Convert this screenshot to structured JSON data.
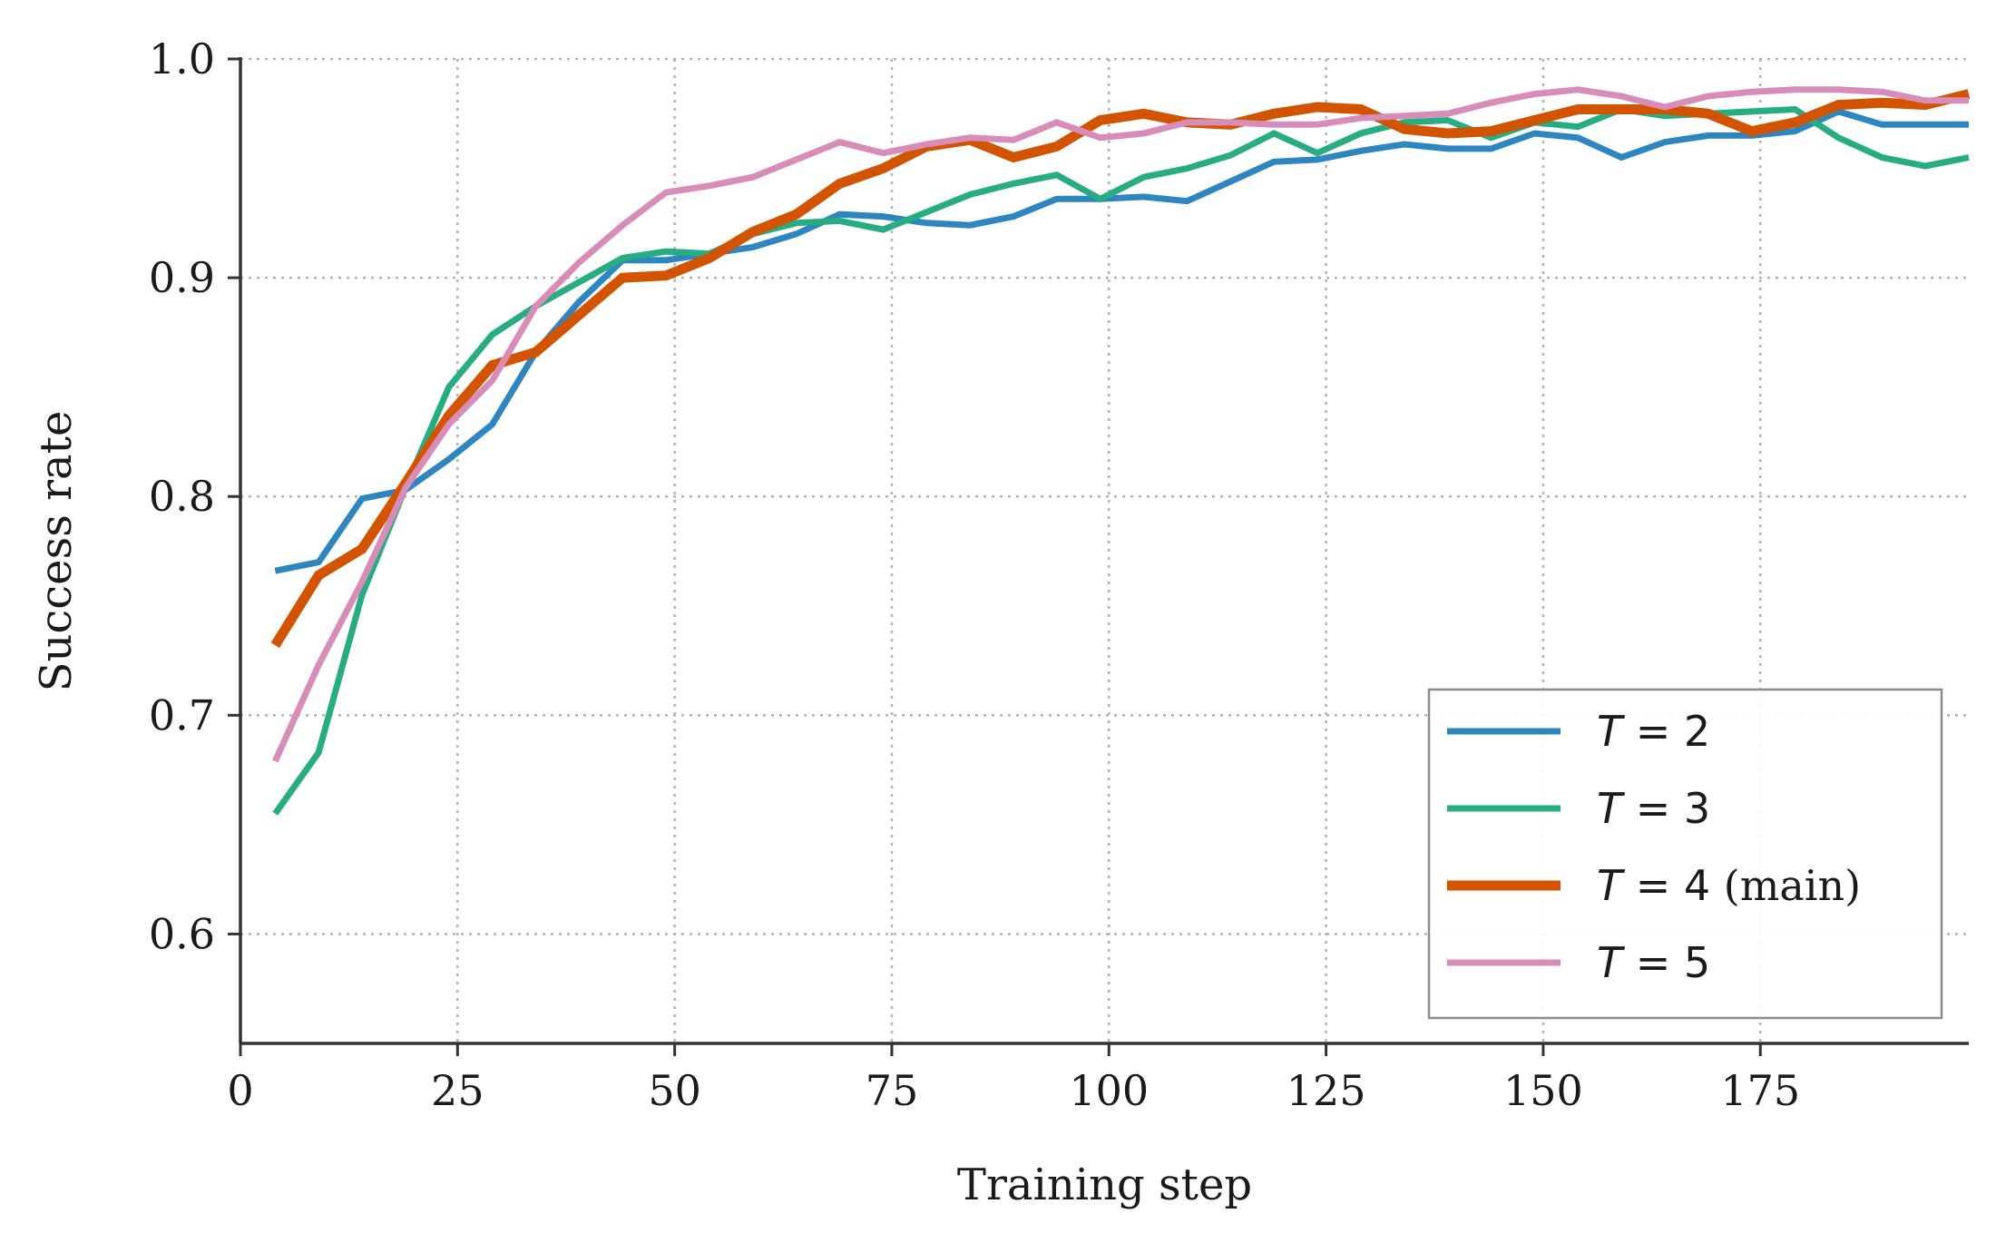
{
  "chart_data": {
    "type": "line",
    "title": "",
    "xlabel": "Training step",
    "ylabel": "Success rate",
    "xlim": [
      0,
      199
    ],
    "ylim": [
      0.55,
      1.0
    ],
    "xticks": [
      0,
      25,
      50,
      75,
      100,
      125,
      150,
      175
    ],
    "yticks": [
      0.6,
      0.7,
      0.8,
      0.9,
      1.0
    ],
    "xtick_labels": [
      "0",
      "25",
      "50",
      "75",
      "100",
      "125",
      "150",
      "175"
    ],
    "ytick_labels": [
      "0.6",
      "0.7",
      "0.8",
      "0.9",
      "1.0"
    ],
    "grid": true,
    "grid_style": "dotted",
    "legend_position": "lower-right",
    "x": [
      4,
      9,
      14,
      19,
      24,
      29,
      34,
      39,
      44,
      49,
      54,
      59,
      64,
      69,
      74,
      79,
      84,
      89,
      94,
      99,
      104,
      109,
      114,
      119,
      124,
      129,
      134,
      139,
      144,
      149,
      154,
      159,
      164,
      169,
      174,
      179,
      184,
      189,
      194,
      199
    ],
    "series": [
      {
        "name": "T = 2",
        "legend": {
          "var": "T",
          "eq": " = ",
          "val": "2",
          "suffix": ""
        },
        "color": "#2e86c1",
        "width": 7,
        "values": [
          0.766,
          0.77,
          0.799,
          0.803,
          0.817,
          0.833,
          0.866,
          0.889,
          0.908,
          0.908,
          0.911,
          0.914,
          0.92,
          0.929,
          0.928,
          0.925,
          0.924,
          0.928,
          0.936,
          0.936,
          0.937,
          0.935,
          0.944,
          0.953,
          0.954,
          0.958,
          0.961,
          0.959,
          0.959,
          0.966,
          0.964,
          0.955,
          0.962,
          0.965,
          0.965,
          0.967,
          0.976,
          0.97,
          0.97,
          0.97
        ]
      },
      {
        "name": "T = 3",
        "legend": {
          "var": "T",
          "eq": " = ",
          "val": "3",
          "suffix": ""
        },
        "color": "#27ad81",
        "width": 7,
        "values": [
          0.655,
          0.683,
          0.755,
          0.804,
          0.85,
          0.874,
          0.887,
          0.898,
          0.909,
          0.912,
          0.911,
          0.92,
          0.925,
          0.926,
          0.922,
          0.93,
          0.938,
          0.943,
          0.947,
          0.936,
          0.946,
          0.95,
          0.956,
          0.966,
          0.957,
          0.966,
          0.971,
          0.972,
          0.964,
          0.971,
          0.969,
          0.977,
          0.974,
          0.975,
          0.976,
          0.977,
          0.964,
          0.955,
          0.951,
          0.955
        ]
      },
      {
        "name": "T = 4 (main)",
        "legend": {
          "var": "T",
          "eq": " = ",
          "val": "4",
          "suffix": " (main)"
        },
        "color": "#d35400",
        "width": 11,
        "values": [
          0.732,
          0.764,
          0.776,
          0.806,
          0.837,
          0.86,
          0.866,
          0.883,
          0.9,
          0.901,
          0.909,
          0.921,
          0.929,
          0.943,
          0.95,
          0.96,
          0.963,
          0.955,
          0.96,
          0.972,
          0.975,
          0.971,
          0.97,
          0.975,
          0.978,
          0.977,
          0.968,
          0.966,
          0.967,
          0.972,
          0.977,
          0.977,
          0.977,
          0.975,
          0.967,
          0.971,
          0.979,
          0.98,
          0.979,
          0.984
        ]
      },
      {
        "name": "T = 5",
        "legend": {
          "var": "T",
          "eq": " = ",
          "val": "5",
          "suffix": ""
        },
        "color": "#d88cba",
        "width": 7,
        "values": [
          0.679,
          0.723,
          0.761,
          0.804,
          0.833,
          0.853,
          0.887,
          0.907,
          0.924,
          0.939,
          0.942,
          0.946,
          0.954,
          0.962,
          0.957,
          0.961,
          0.964,
          0.963,
          0.971,
          0.964,
          0.966,
          0.971,
          0.971,
          0.97,
          0.97,
          0.973,
          0.974,
          0.975,
          0.98,
          0.984,
          0.986,
          0.983,
          0.978,
          0.983,
          0.985,
          0.986,
          0.986,
          0.985,
          0.981,
          0.981
        ]
      }
    ]
  }
}
